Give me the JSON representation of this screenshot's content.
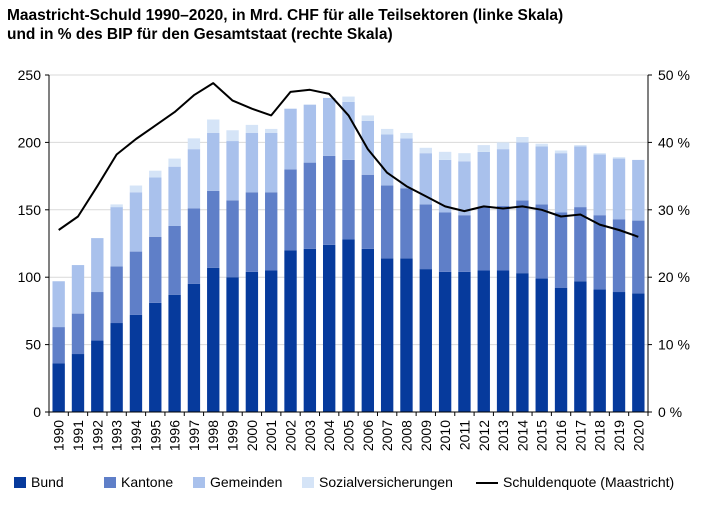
{
  "chart_data": {
    "type": "bar",
    "title_line1": "Maastricht-Schuld 1990–2020, in Mrd. CHF für alle Teilsektoren (linke Skala)",
    "title_line2": "und in % des BIP für den Gesamtstaat (rechte Skala)",
    "categories": [
      "1990",
      "1991",
      "1992",
      "1993",
      "1994",
      "1995",
      "1996",
      "1997",
      "1998",
      "1999",
      "2000",
      "2001",
      "2002",
      "2003",
      "2004",
      "2005",
      "2006",
      "2007",
      "2008",
      "2009",
      "2010",
      "2011",
      "2012",
      "2013",
      "2014",
      "2015",
      "2016",
      "2017",
      "2018",
      "2019",
      "2020"
    ],
    "stacked": true,
    "ylim_left": [
      0,
      250
    ],
    "yticks_left": [
      0,
      50,
      100,
      150,
      200,
      250
    ],
    "ylim_right": [
      0,
      50
    ],
    "yticks_right": [
      "0 %",
      "10 %",
      "20 %",
      "30 %",
      "40 %",
      "50 %"
    ],
    "series": [
      {
        "name": "Bund",
        "color": "#063a9c",
        "values": [
          36,
          43,
          53,
          66,
          72,
          81,
          87,
          95,
          107,
          100,
          104,
          105,
          120,
          121,
          124,
          128,
          121,
          114,
          114,
          106,
          104,
          104,
          105,
          105,
          103,
          99,
          92,
          97,
          91,
          89,
          88
        ]
      },
      {
        "name": "Kantone",
        "color": "#5f7fc8",
        "values": [
          27,
          30,
          36,
          42,
          47,
          49,
          51,
          56,
          57,
          57,
          59,
          58,
          60,
          64,
          66,
          59,
          55,
          54,
          52,
          48,
          44,
          42,
          47,
          48,
          54,
          55,
          56,
          55,
          55,
          54,
          54
        ]
      },
      {
        "name": "Gemeinden",
        "color": "#a9c1ec",
        "values": [
          34,
          36,
          40,
          44,
          44,
          44,
          44,
          44,
          43,
          44,
          44,
          44,
          45,
          43,
          43,
          43,
          40,
          38,
          37,
          38,
          39,
          40,
          41,
          42,
          43,
          43,
          44,
          45,
          45,
          45,
          45
        ]
      },
      {
        "name": "Sozialversicherungen",
        "color": "#d5e4f7",
        "values": [
          0,
          0,
          0,
          2,
          5,
          5,
          6,
          8,
          10,
          8,
          6,
          3,
          0,
          0,
          0,
          4,
          4,
          4,
          4,
          4,
          6,
          6,
          5,
          5,
          4,
          2,
          2,
          1,
          1,
          1,
          0
        ]
      }
    ],
    "line": {
      "name": "Schuldenquote (Maastricht)",
      "color": "#000000",
      "axis": "right",
      "values": [
        27,
        29,
        33.5,
        38.2,
        40.5,
        42.5,
        44.5,
        47,
        48.8,
        46.2,
        45,
        44,
        47.5,
        47.8,
        47.2,
        44,
        39,
        35.5,
        33.5,
        32,
        30.5,
        29.8,
        30.5,
        30.2,
        30.5,
        30,
        29,
        29.3,
        27.8,
        27,
        26
      ]
    },
    "legend_position": "bottom"
  }
}
